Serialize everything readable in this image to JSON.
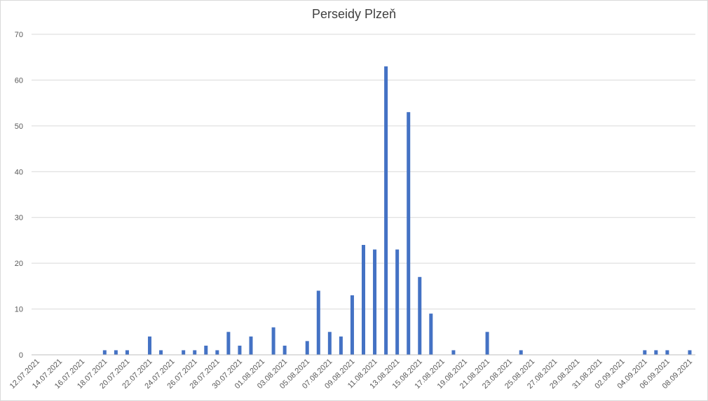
{
  "chart_data": {
    "type": "bar",
    "title": "Perseidy Plzeň",
    "xlabel": "",
    "ylabel": "",
    "ylim": [
      0,
      70
    ],
    "y_ticks": [
      0,
      10,
      20,
      30,
      40,
      50,
      60,
      70
    ],
    "grid": true,
    "legend": "none",
    "bar_color": "#4472c4",
    "x_tick_labels": [
      "12.07.2021",
      "14.07.2021",
      "16.07.2021",
      "18.07.2021",
      "20.07.2021",
      "22.07.2021",
      "24.07.2021",
      "26.07.2021",
      "28.07.2021",
      "30.07.2021",
      "01.08.2021",
      "03.08.2021",
      "05.08.2021",
      "07.08.2021",
      "09.08.2021",
      "11.08.2021",
      "13.08.2021",
      "15.08.2021",
      "17.08.2021",
      "19.08.2021",
      "21.08.2021",
      "23.08.2021",
      "25.08.2021",
      "27.08.2021",
      "29.08.2021",
      "31.08.2021",
      "02.09.2021",
      "04.09.2021",
      "06.09.2021",
      "08.09.2021"
    ],
    "categories": [
      "12.07.2021",
      "13.07.2021",
      "14.07.2021",
      "15.07.2021",
      "16.07.2021",
      "17.07.2021",
      "18.07.2021",
      "19.07.2021",
      "20.07.2021",
      "21.07.2021",
      "22.07.2021",
      "23.07.2021",
      "24.07.2021",
      "25.07.2021",
      "26.07.2021",
      "27.07.2021",
      "28.07.2021",
      "29.07.2021",
      "30.07.2021",
      "31.07.2021",
      "01.08.2021",
      "02.08.2021",
      "03.08.2021",
      "04.08.2021",
      "05.08.2021",
      "06.08.2021",
      "07.08.2021",
      "08.08.2021",
      "09.08.2021",
      "10.08.2021",
      "11.08.2021",
      "12.08.2021",
      "13.08.2021",
      "14.08.2021",
      "15.08.2021",
      "16.08.2021",
      "17.08.2021",
      "18.08.2021",
      "19.08.2021",
      "20.08.2021",
      "21.08.2021",
      "22.08.2021",
      "23.08.2021",
      "24.08.2021",
      "25.08.2021",
      "26.08.2021",
      "27.08.2021",
      "28.08.2021",
      "29.08.2021",
      "30.08.2021",
      "31.08.2021",
      "01.09.2021",
      "02.09.2021",
      "03.09.2021",
      "04.09.2021",
      "05.09.2021",
      "06.09.2021",
      "07.09.2021",
      "08.09.2021"
    ],
    "values": [
      0,
      0,
      0,
      0,
      0,
      0,
      1,
      1,
      1,
      0,
      4,
      1,
      0,
      1,
      1,
      2,
      1,
      5,
      2,
      4,
      0,
      6,
      2,
      0,
      3,
      14,
      5,
      4,
      13,
      24,
      23,
      63,
      23,
      53,
      17,
      9,
      0,
      1,
      0,
      0,
      5,
      0,
      0,
      1,
      0,
      0,
      0,
      0,
      0,
      0,
      0,
      0,
      0,
      0,
      1,
      1,
      1,
      0,
      1
    ]
  }
}
